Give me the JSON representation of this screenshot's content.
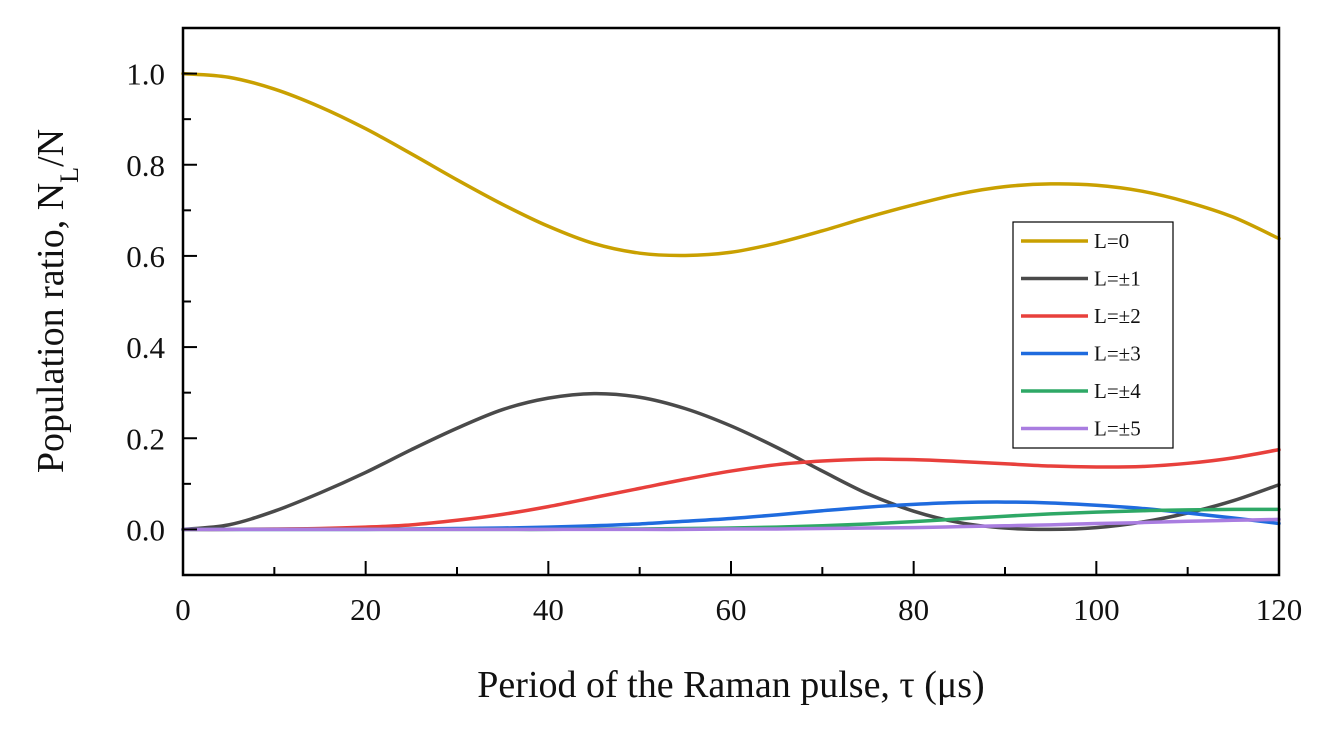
{
  "chart_data": {
    "type": "line",
    "title": "",
    "xlabel": "Period of the Raman pulse, τ (μs)",
    "ylabel": {
      "prefix": "Population ratio, N",
      "sub": "L",
      "suffix": "/N"
    },
    "xlim": [
      0,
      120
    ],
    "ylim": [
      -0.1,
      1.1
    ],
    "xticks": [
      0,
      20,
      40,
      60,
      80,
      100,
      120
    ],
    "xtick_labels": [
      "0",
      "20",
      "40",
      "60",
      "80",
      "100",
      "120"
    ],
    "yticks": [
      0.0,
      0.2,
      0.4,
      0.6,
      0.8,
      1.0
    ],
    "ytick_labels": [
      "0.0",
      "0.2",
      "0.4",
      "0.6",
      "0.8",
      "1.0"
    ],
    "grid": false,
    "legend_position": "right",
    "x": [
      0,
      5,
      10,
      15,
      20,
      25,
      30,
      35,
      40,
      45,
      50,
      55,
      60,
      65,
      70,
      75,
      80,
      85,
      90,
      95,
      100,
      105,
      110,
      115,
      120
    ],
    "series": [
      {
        "name": "L=0",
        "color": "#C9A000",
        "values": [
          1.0,
          0.992,
          0.966,
          0.927,
          0.879,
          0.824,
          0.767,
          0.713,
          0.665,
          0.627,
          0.606,
          0.601,
          0.608,
          0.628,
          0.655,
          0.685,
          0.712,
          0.736,
          0.752,
          0.758,
          0.755,
          0.742,
          0.718,
          0.685,
          0.638
        ]
      },
      {
        "name": "L=±1",
        "color": "#4A4A4A",
        "values": [
          0.0,
          0.01,
          0.04,
          0.08,
          0.125,
          0.175,
          0.222,
          0.263,
          0.288,
          0.298,
          0.29,
          0.265,
          0.227,
          0.18,
          0.128,
          0.078,
          0.04,
          0.015,
          0.003,
          0.0,
          0.004,
          0.016,
          0.036,
          0.063,
          0.098
        ]
      },
      {
        "name": "L=±2",
        "color": "#E8403C",
        "values": [
          0.0,
          0.0,
          0.001,
          0.002,
          0.005,
          0.01,
          0.02,
          0.033,
          0.05,
          0.07,
          0.09,
          0.11,
          0.128,
          0.142,
          0.15,
          0.154,
          0.153,
          0.149,
          0.144,
          0.139,
          0.137,
          0.138,
          0.145,
          0.157,
          0.175
        ]
      },
      {
        "name": "L=±3",
        "color": "#1F6BDE",
        "values": [
          0.0,
          0.0,
          0.0,
          0.0,
          0.0,
          0.001,
          0.002,
          0.003,
          0.005,
          0.008,
          0.012,
          0.018,
          0.024,
          0.032,
          0.041,
          0.049,
          0.055,
          0.059,
          0.06,
          0.058,
          0.053,
          0.046,
          0.036,
          0.025,
          0.013
        ]
      },
      {
        "name": "L=±4",
        "color": "#2EA866",
        "values": [
          0.0,
          0.0,
          0.0,
          0.0,
          0.0,
          0.0,
          0.0,
          0.0,
          0.0,
          0.001,
          0.001,
          0.002,
          0.003,
          0.005,
          0.008,
          0.012,
          0.017,
          0.023,
          0.029,
          0.034,
          0.038,
          0.041,
          0.043,
          0.044,
          0.044
        ]
      },
      {
        "name": "L=±5",
        "color": "#A97DE0",
        "values": [
          0.0,
          0.0,
          0.0,
          0.0,
          0.0,
          0.0,
          0.0,
          0.0,
          0.0,
          0.0,
          0.0,
          0.0,
          0.001,
          0.001,
          0.002,
          0.003,
          0.004,
          0.006,
          0.008,
          0.01,
          0.013,
          0.015,
          0.018,
          0.02,
          0.022
        ]
      }
    ]
  }
}
